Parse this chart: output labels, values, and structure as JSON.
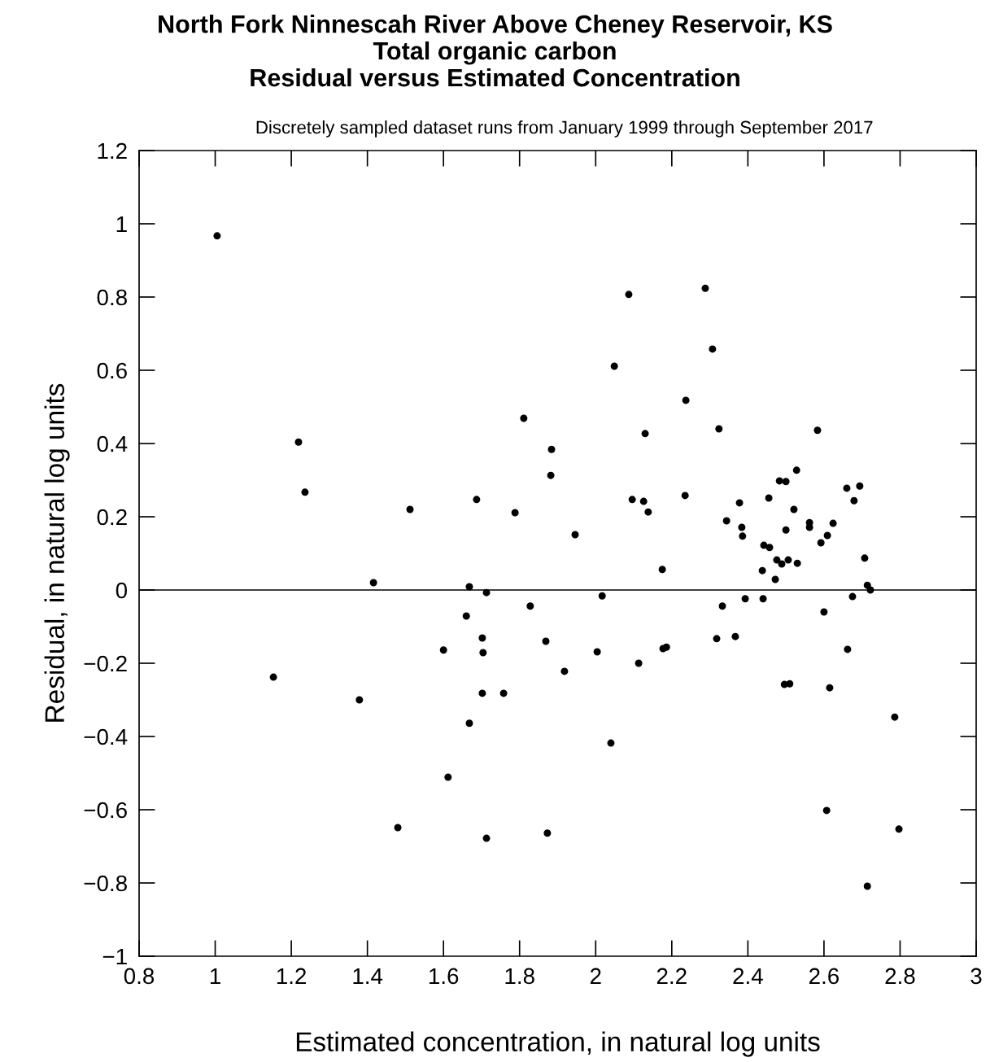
{
  "chart_data": {
    "type": "scatter",
    "title": "North Fork Ninnescah River Above Cheney Reservoir, KS\nTotal organic carbon\nResidual versus Estimated Concentration",
    "subtitle": "Discretely sampled dataset runs from January 1999 through September 2017",
    "xlabel": "Estimated concentration, in natural log units",
    "ylabel": "Residual, in natural log units",
    "x": [
      1.005,
      1.153,
      1.219,
      1.236,
      1.379,
      1.416,
      1.48,
      1.512,
      1.6,
      1.612,
      1.66,
      1.668,
      1.668,
      1.687,
      1.702,
      1.704,
      1.702,
      1.713,
      1.713,
      1.758,
      1.788,
      1.811,
      1.828,
      1.869,
      1.873,
      1.882,
      1.884,
      1.918,
      1.946,
      2.004,
      2.017,
      2.04,
      2.049,
      2.087,
      2.096,
      2.113,
      2.126,
      2.13,
      2.138,
      2.175,
      2.177,
      2.186,
      2.237,
      2.235,
      2.288,
      2.307,
      2.318,
      2.324,
      2.333,
      2.344,
      2.367,
      2.378,
      2.384,
      2.386,
      2.393,
      2.438,
      2.44,
      2.442,
      2.457,
      2.455,
      2.472,
      2.476,
      2.483,
      2.489,
      2.496,
      2.5,
      2.5,
      2.506,
      2.51,
      2.521,
      2.528,
      2.53,
      2.562,
      2.562,
      2.583,
      2.592,
      2.6,
      2.609,
      2.607,
      2.615,
      2.624,
      2.66,
      2.662,
      2.675,
      2.679,
      2.694,
      2.707,
      2.714,
      2.714,
      2.722,
      2.786,
      2.797
    ],
    "series": [
      {
        "color": "#000000",
        "values": [
          0.967,
          -0.238,
          0.404,
          0.267,
          -0.3,
          0.02,
          -0.649,
          0.22,
          -0.164,
          -0.511,
          -0.071,
          0.009,
          -0.364,
          0.247,
          -0.131,
          -0.171,
          -0.282,
          -0.007,
          -0.678,
          -0.282,
          0.211,
          0.469,
          -0.044,
          -0.14,
          -0.664,
          0.313,
          0.384,
          -0.222,
          0.151,
          -0.169,
          -0.016,
          -0.418,
          0.611,
          0.807,
          0.247,
          -0.2,
          0.242,
          0.427,
          0.213,
          0.056,
          -0.16,
          -0.156,
          0.518,
          0.258,
          0.824,
          0.658,
          -0.133,
          0.44,
          -0.044,
          0.189,
          -0.127,
          0.238,
          0.171,
          0.147,
          -0.024,
          0.053,
          -0.024,
          0.122,
          0.116,
          0.251,
          0.029,
          0.082,
          0.298,
          0.071,
          -0.258,
          0.296,
          0.164,
          0.082,
          -0.256,
          0.22,
          0.327,
          0.073,
          0.184,
          0.171,
          0.436,
          0.129,
          -0.06,
          0.149,
          -0.602,
          -0.267,
          0.182,
          0.278,
          -0.162,
          -0.018,
          0.244,
          0.284,
          0.087,
          0.013,
          -0.809,
          0.0,
          -0.347,
          -0.653
        ]
      }
    ],
    "marker": "circle",
    "grid": false,
    "xlim": [
      0.8,
      3
    ],
    "xticks": [
      0.8,
      1,
      1.2,
      1.4,
      1.6,
      1.8,
      2,
      2.2,
      2.4,
      2.6,
      2.8,
      3
    ],
    "ylim": [
      -1,
      1.2
    ],
    "yticks": [
      {
        "value": -1,
        "label": "−1"
      },
      {
        "value": -0.8,
        "label": "−0.8"
      },
      {
        "value": -0.6,
        "label": "−0.6"
      },
      {
        "value": -0.4,
        "label": "−0.4"
      },
      {
        "value": -0.2,
        "label": "−0.2"
      },
      0,
      0.2,
      0.4,
      0.6,
      0.8,
      1,
      1.2
    ],
    "ref_lines": [
      {
        "axis": "y",
        "value": 0,
        "label": null,
        "color": "#000000",
        "line_style": "solid"
      }
    ]
  }
}
